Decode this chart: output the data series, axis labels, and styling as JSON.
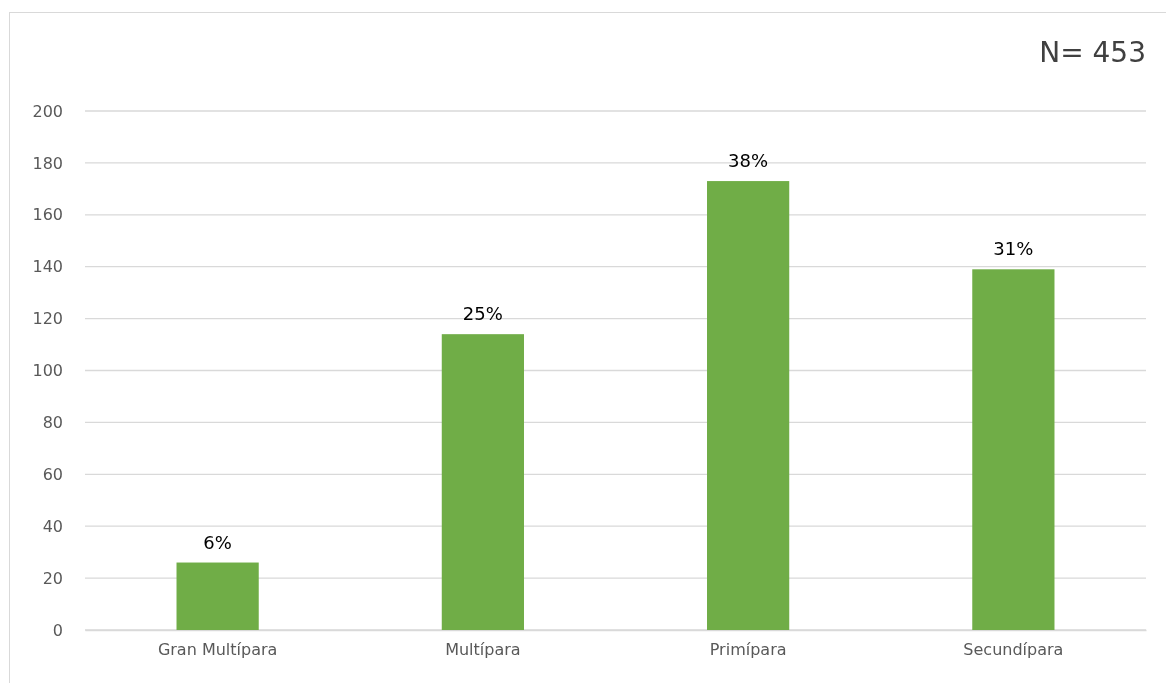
{
  "chart_data": {
    "type": "bar",
    "categories": [
      "Gran Multípara",
      "Multípara",
      "Primípara",
      "Secundípara"
    ],
    "values": [
      26,
      114,
      173,
      139
    ],
    "color": "#70ad47",
    "ylim": [
      0,
      200
    ],
    "yticks": [
      0,
      20,
      40,
      60,
      80,
      100,
      120,
      140,
      160,
      180,
      200
    ],
    "grid": "y",
    "annotations": [
      "N= 453",
      {
        "text": "6%",
        "x": "Gran Multípara",
        "y": 26
      },
      {
        "text": "25%",
        "x": "Multípara",
        "y": 114
      },
      {
        "text": "38%",
        "x": "Primípara",
        "y": 173
      },
      {
        "text": "31%",
        "x": "Secundípara",
        "y": 139
      }
    ]
  }
}
